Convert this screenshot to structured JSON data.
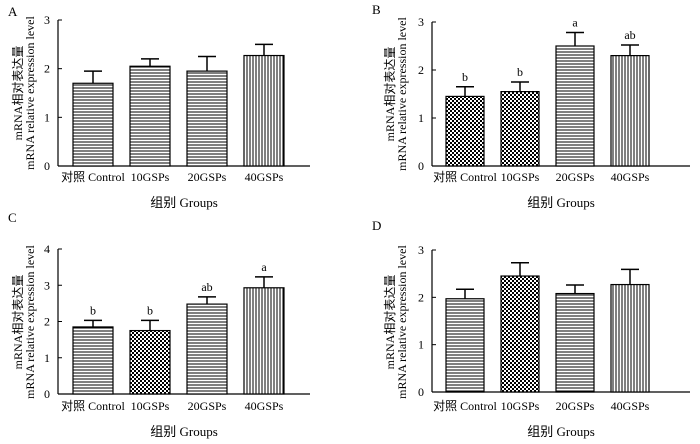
{
  "chart_data": [
    {
      "type": "bar",
      "panel_label": "A",
      "categories": [
        "对照 Control",
        "10GSPs",
        "20GSPs",
        "40GSPs"
      ],
      "values": [
        1.7,
        2.05,
        1.95,
        2.27
      ],
      "errors": [
        0.25,
        0.15,
        0.3,
        0.23
      ],
      "significance": [
        "",
        "",
        "",
        ""
      ],
      "ylabel_cn": "mRNA相对表达量",
      "ylabel_en": "mRNA relative expression level",
      "xlabel": "组别 Groups",
      "ylim": [
        0,
        3
      ],
      "yticks": [
        0,
        1,
        2,
        3
      ],
      "patterns": [
        "hatch-h",
        "hatch-h",
        "hatch-h",
        "hatch-v"
      ]
    },
    {
      "type": "bar",
      "panel_label": "B",
      "categories": [
        "对照 Control",
        "10GSPs",
        "20GSPs",
        "40GSPs"
      ],
      "values": [
        1.45,
        1.55,
        2.5,
        2.3
      ],
      "errors": [
        0.2,
        0.2,
        0.28,
        0.22
      ],
      "significance": [
        "b",
        "b",
        "a",
        "ab"
      ],
      "ylabel_cn": "mRNA相对表达量",
      "ylabel_en": "mRNA relative expression level",
      "xlabel": "组别 Groups",
      "ylim": [
        0,
        3
      ],
      "yticks": [
        0,
        1,
        2,
        3
      ],
      "patterns": [
        "checker",
        "checker",
        "hatch-h",
        "hatch-v"
      ]
    },
    {
      "type": "bar",
      "panel_label": "C",
      "categories": [
        "对照 Control",
        "10GSPs",
        "20GSPs",
        "40GSPs"
      ],
      "values": [
        1.85,
        1.75,
        2.48,
        2.93
      ],
      "errors": [
        0.18,
        0.28,
        0.2,
        0.3
      ],
      "significance": [
        "b",
        "b",
        "ab",
        "a"
      ],
      "ylabel_cn": "mRNA相对表达量",
      "ylabel_en": "mRNA relative expression level",
      "xlabel": "组别 Groups",
      "ylim": [
        0,
        4
      ],
      "yticks": [
        0,
        1,
        2,
        3,
        4
      ],
      "patterns": [
        "hatch-h",
        "checker",
        "hatch-h",
        "hatch-v"
      ]
    },
    {
      "type": "bar",
      "panel_label": "D",
      "categories": [
        "对照 Control",
        "10GSPs",
        "20GSPs",
        "40GSPs"
      ],
      "values": [
        1.97,
        2.45,
        2.08,
        2.27
      ],
      "errors": [
        0.2,
        0.28,
        0.18,
        0.32
      ],
      "significance": [
        "",
        "",
        "",
        ""
      ],
      "ylabel_cn": "mRNA相对表达量",
      "ylabel_en": "mRNA relative expression level",
      "xlabel": "组别 Groups",
      "ylim": [
        0,
        3
      ],
      "yticks": [
        0,
        1,
        2,
        3
      ],
      "patterns": [
        "hatch-h",
        "checker",
        "hatch-h",
        "hatch-v"
      ]
    }
  ]
}
